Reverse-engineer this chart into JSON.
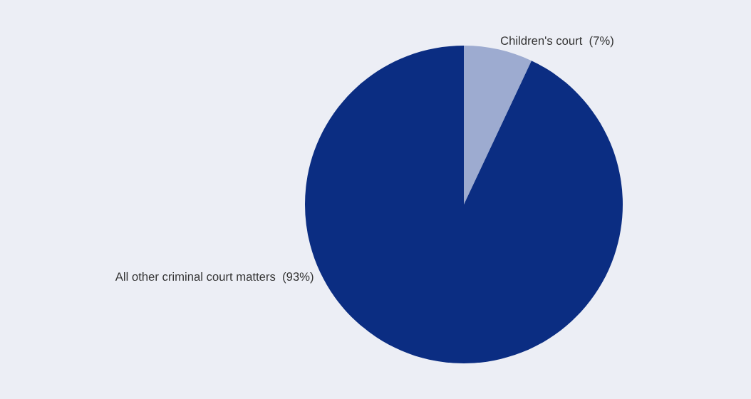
{
  "chart_data": {
    "type": "pie",
    "categories": [
      "Children's court",
      "All other criminal court matters"
    ],
    "values": [
      7,
      93
    ],
    "value_labels": [
      "(7%)",
      "(93%)"
    ],
    "colors": [
      "#9dabd0",
      "#0b2d82"
    ]
  }
}
